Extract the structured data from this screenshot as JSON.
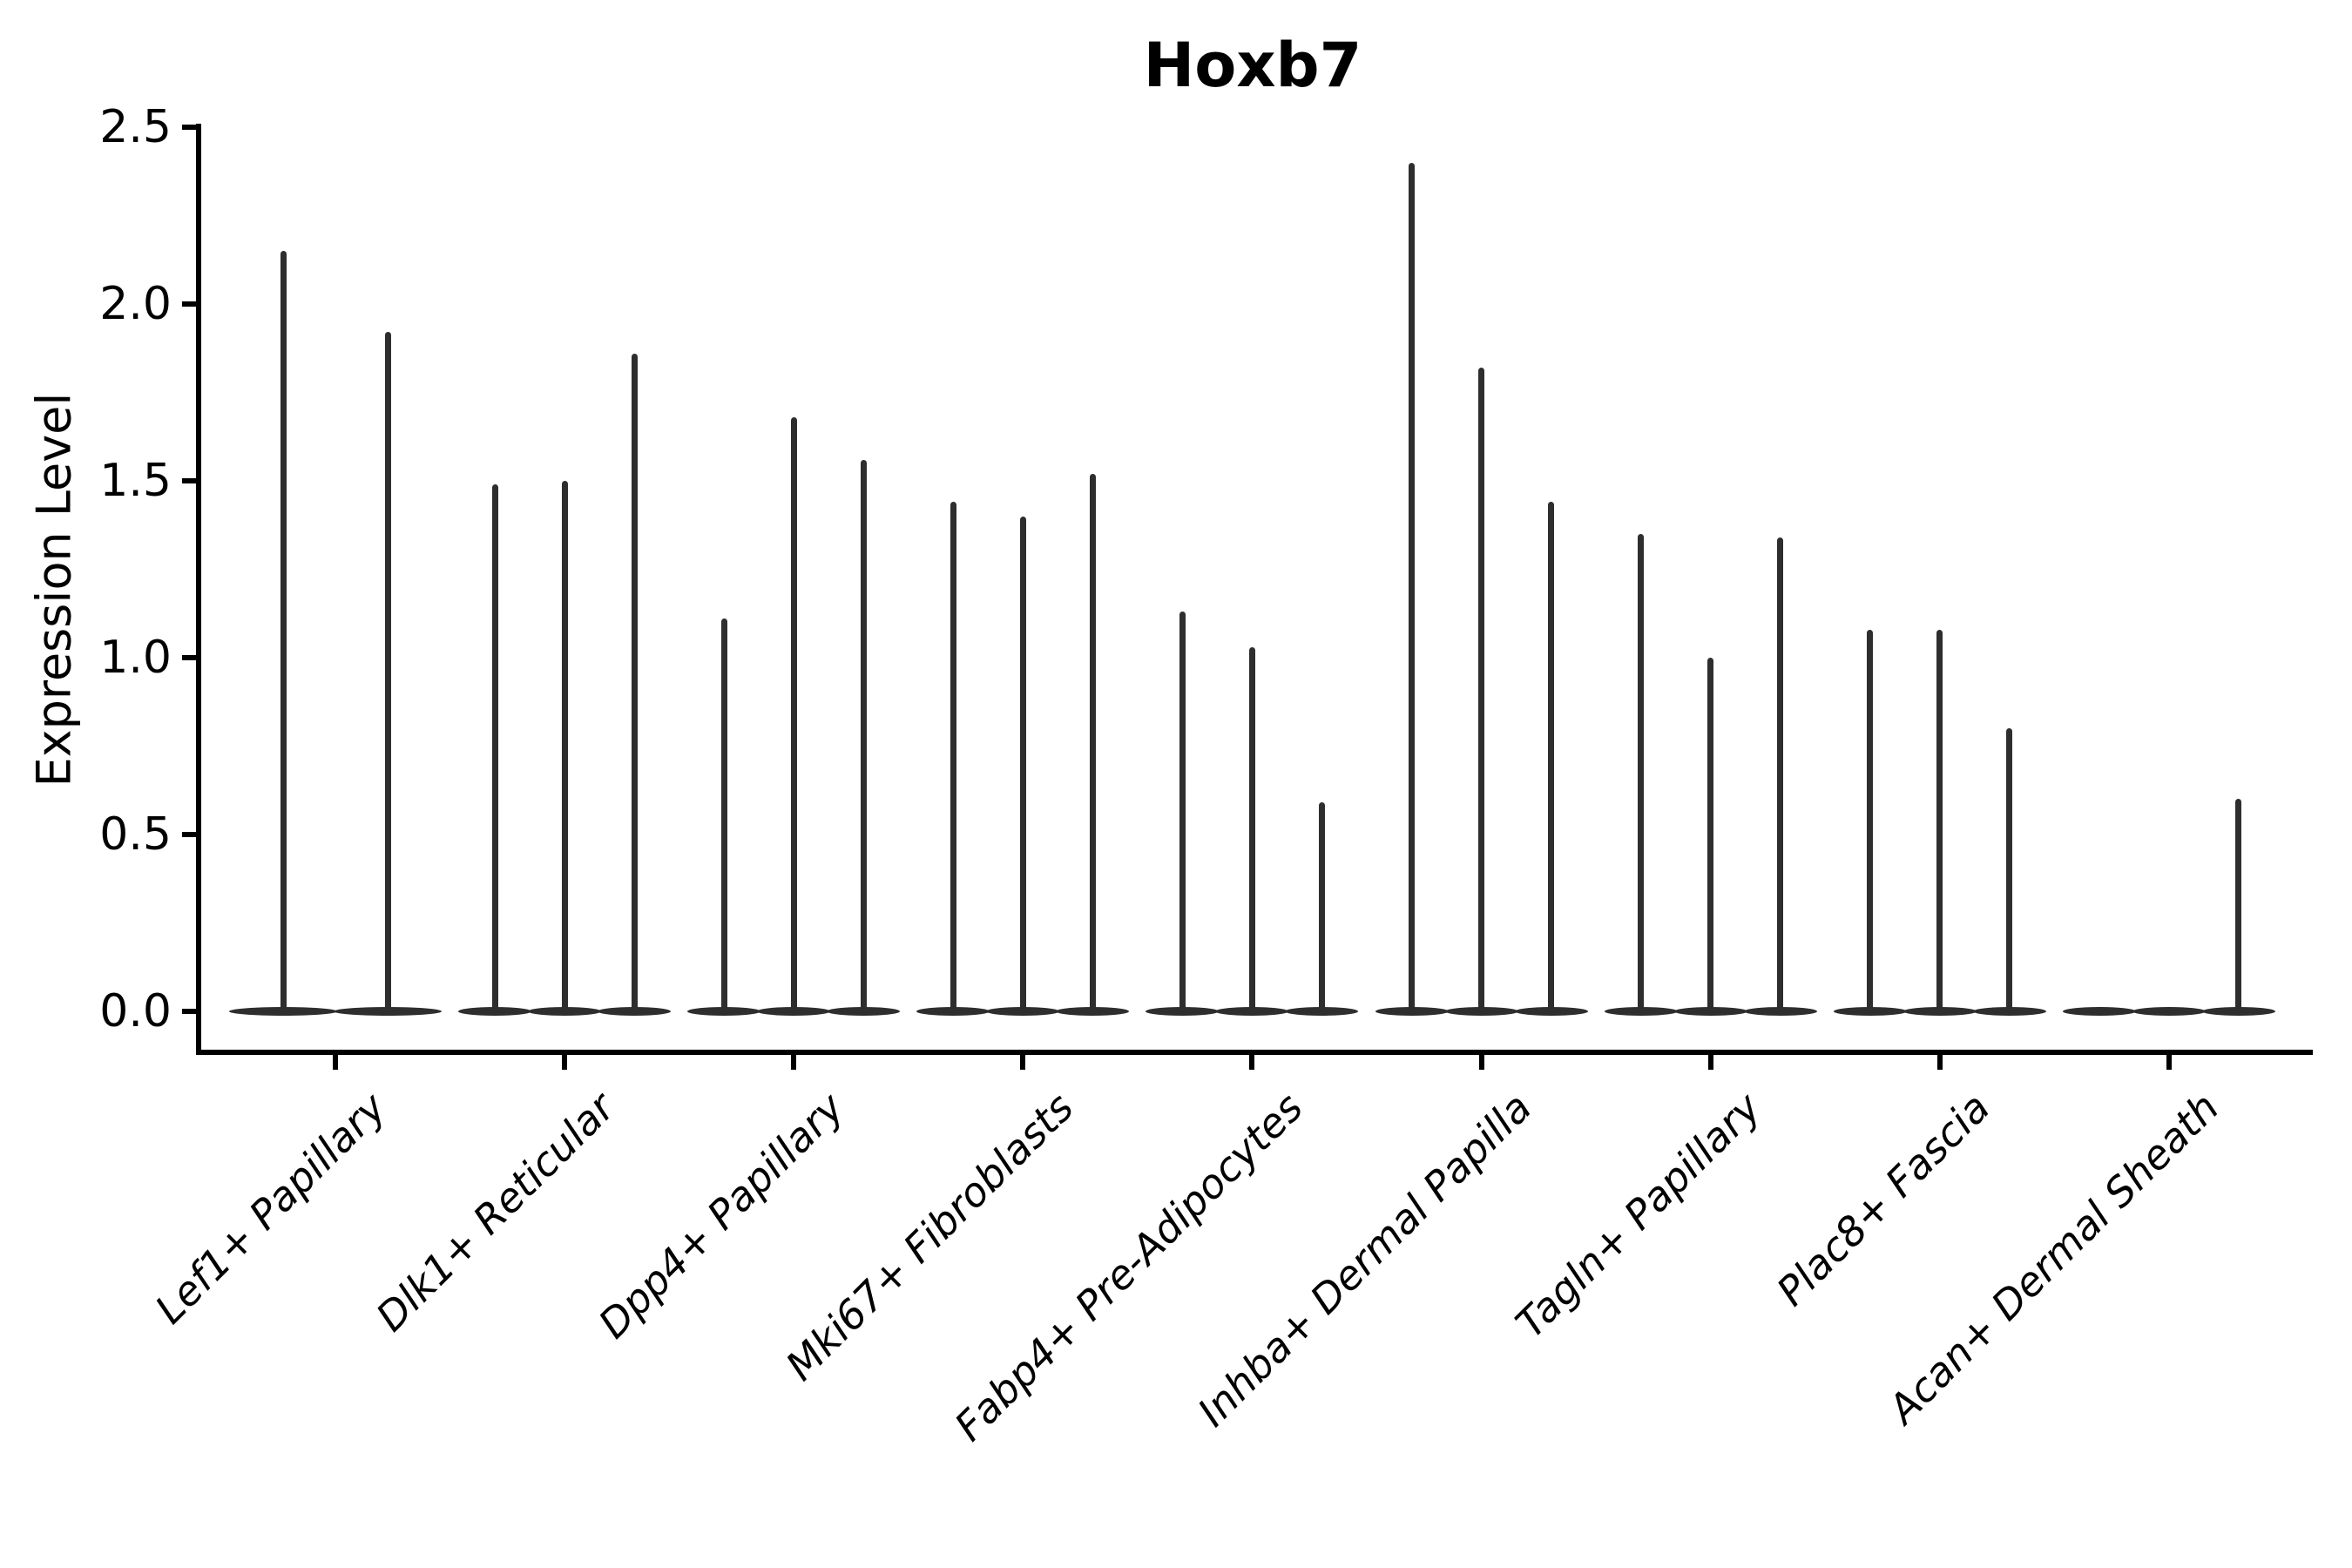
{
  "title": "Hoxb7",
  "y_axis": {
    "label": "Expression Level",
    "tick_labels": [
      "0.0",
      "0.5",
      "1.0",
      "1.5",
      "2.0",
      "2.5"
    ],
    "tick_values": [
      0.0,
      0.5,
      1.0,
      1.5,
      2.0,
      2.5
    ]
  },
  "chart_data": {
    "type": "violin",
    "title": "Hoxb7",
    "xlabel": "",
    "ylabel": "Expression Level",
    "ylim": [
      -0.11,
      2.51
    ],
    "yticks": [
      0.0,
      0.5,
      1.0,
      1.5,
      2.0,
      2.5
    ],
    "grid": false,
    "legend": "none",
    "categories": [
      "Lef1+ Papillary",
      "Dlk1+ Reticular",
      "Dpp4+ Papillary",
      "Mki67+ Fibroblasts",
      "Fabp4+ Pre-Adipocytes",
      "Inhba+ Dermal Papilla",
      "Tagln+ Papillary",
      "Plac8+ Fascia",
      "Acan+ Dermal Sheath"
    ],
    "series": [
      {
        "category": "Lef1+ Papillary",
        "violin_maxima": [
          2.15,
          1.92
        ]
      },
      {
        "category": "Dlk1+ Reticular",
        "violin_maxima": [
          1.49,
          1.5,
          1.86
        ]
      },
      {
        "category": "Dpp4+ Papillary",
        "violin_maxima": [
          1.11,
          1.68,
          1.56
        ]
      },
      {
        "category": "Mki67+ Fibroblasts",
        "violin_maxima": [
          1.44,
          1.4,
          1.52
        ]
      },
      {
        "category": "Fabp4+ Pre-Adipocytes",
        "violin_maxima": [
          1.13,
          1.03,
          0.59
        ]
      },
      {
        "category": "Inhba+ Dermal Papilla",
        "violin_maxima": [
          2.4,
          1.82,
          1.44
        ]
      },
      {
        "category": "Tagln+ Papillary",
        "violin_maxima": [
          1.35,
          1.0,
          1.34
        ]
      },
      {
        "category": "Plac8+ Fascia",
        "violin_maxima": [
          1.08,
          1.08,
          0.8
        ]
      },
      {
        "category": "Acan+ Dermal Sheath",
        "violin_maxima": [
          0,
          0,
          0.6
        ]
      }
    ],
    "violin_style": "Each violin is a near-zero-width density: a wide flat lens at expression 0 with a thin vertical spike rising to the listed maximum; a maximum of 0 means base only (no spike).",
    "ink_color": "#2e2e2e"
  }
}
